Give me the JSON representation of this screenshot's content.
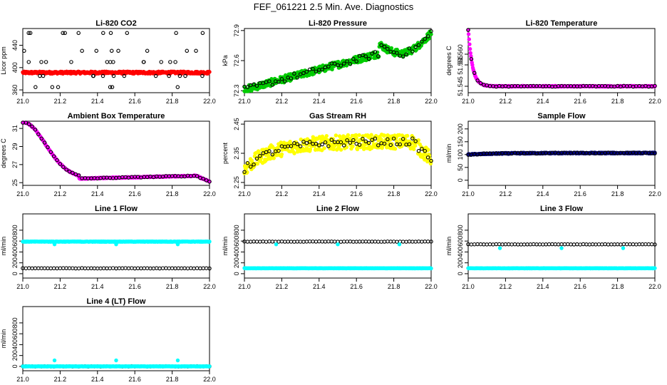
{
  "figure": {
    "title": "FEF_061221  2.5 Min. Ave. Diagnostics"
  },
  "colors": {
    "black": "#000000",
    "red": "#ff0000",
    "green": "#00cc00",
    "magenta": "#ff00ff",
    "yellow": "#ffff00",
    "navy": "#000080",
    "cyan": "#00ffff"
  },
  "chart_data": [
    {
      "type": "scatter",
      "title": "Li-820 CO2",
      "ylabel": "Licor ppm",
      "xlim": [
        21.0,
        22.0
      ],
      "ylim": [
        355,
        470
      ],
      "x_ticks": [
        "21.0",
        "21.2",
        "21.4",
        "21.6",
        "21.8",
        "22.0"
      ],
      "y_ticks": [
        {
          "v": 360,
          "label": "360"
        },
        {
          "v": 400,
          "label": "400"
        },
        {
          "v": 440,
          "label": "440"
        }
      ],
      "series": [
        {
          "color": "#ff0000",
          "filled": true,
          "fn": "const",
          "params": [
            391,
            2
          ]
        },
        {
          "color": "#000000",
          "filled": false,
          "fn": "scatter_levels",
          "params": [
            [
              365,
              385,
              410,
              430,
              462
            ],
            48
          ]
        }
      ]
    },
    {
      "type": "scatter",
      "title": "Li-820 Pressure",
      "ylabel": "kPa",
      "xlim": [
        21.0,
        22.0
      ],
      "ylim": [
        72.28,
        72.92
      ],
      "x_ticks": [
        "21.0",
        "21.2",
        "21.4",
        "21.6",
        "21.8",
        "22.0"
      ],
      "y_ticks": [
        {
          "v": 72.3,
          "label": "72.3"
        },
        {
          "v": 72.6,
          "label": "72.6"
        },
        {
          "v": 72.9,
          "label": "72.9"
        }
      ],
      "series": [
        {
          "color": "#00cc00",
          "filled": true,
          "fn": "pressure",
          "params": [
            0.035
          ]
        },
        {
          "color": "#000000",
          "filled": false,
          "fn": "pressure",
          "params": [
            0.03
          ]
        }
      ]
    },
    {
      "type": "scatter",
      "title": "Li-820 Temperature",
      "ylabel": "degrees C",
      "xlim": [
        21.0,
        22.0
      ],
      "ylim": [
        51.542,
        51.572
      ],
      "x_ticks": [
        "21.0",
        "21.2",
        "21.4",
        "21.6",
        "21.8",
        "22.0"
      ],
      "y_ticks": [
        {
          "v": 51.545,
          "label": "51.545"
        },
        {
          "v": 51.555,
          "label": "51.555"
        },
        {
          "v": 51.56,
          "label": "51.560"
        }
      ],
      "series": [
        {
          "color": "#ff00ff",
          "filled": true,
          "fn": "licor_temp",
          "params": []
        },
        {
          "color": "#000000",
          "filled": false,
          "fn": "licor_temp",
          "params": []
        }
      ]
    },
    {
      "type": "scatter",
      "title": "Ambient Box Temperature",
      "ylabel": "degrees C",
      "xlim": [
        21.0,
        22.0
      ],
      "ylim": [
        24.7,
        31.8
      ],
      "x_ticks": [
        "21.0",
        "21.2",
        "21.4",
        "21.6",
        "21.8",
        "22.0"
      ],
      "y_ticks": [
        {
          "v": 25,
          "label": "25"
        },
        {
          "v": 27,
          "label": "27"
        },
        {
          "v": 29,
          "label": "29"
        },
        {
          "v": 31,
          "label": "31"
        }
      ],
      "series": [
        {
          "color": "#ff00ff",
          "filled": true,
          "fn": "box_temp",
          "params": []
        },
        {
          "color": "#000000",
          "filled": false,
          "fn": "box_temp",
          "params": []
        }
      ]
    },
    {
      "type": "scatter",
      "title": "Gas Stream RH",
      "ylabel": "percent",
      "xlim": [
        21.0,
        22.0
      ],
      "ylim": [
        2.24,
        2.46
      ],
      "x_ticks": [
        "21.0",
        "21.2",
        "21.4",
        "21.6",
        "21.8",
        "22.0"
      ],
      "y_ticks": [
        {
          "v": 2.25,
          "label": "2.25"
        },
        {
          "v": 2.35,
          "label": "2.35"
        },
        {
          "v": 2.45,
          "label": "2.45"
        }
      ],
      "series": [
        {
          "color": "#ffff00",
          "filled": true,
          "fn": "rh",
          "params": [
            0.025
          ]
        },
        {
          "color": "#000000",
          "filled": false,
          "fn": "rh",
          "params": [
            0.012
          ]
        }
      ]
    },
    {
      "type": "scatter",
      "title": "Sample Flow",
      "ylabel": "ml/min",
      "xlim": [
        21.0,
        22.0
      ],
      "ylim": [
        -20,
        230
      ],
      "x_ticks": [
        "21.0",
        "21.2",
        "21.4",
        "21.6",
        "21.8",
        "22.0"
      ],
      "y_ticks": [
        {
          "v": 0,
          "label": "0"
        },
        {
          "v": 50,
          "label": "50"
        },
        {
          "v": 100,
          "label": "100"
        },
        {
          "v": 150,
          "label": "150"
        },
        {
          "v": 200,
          "label": "200"
        }
      ],
      "series": [
        {
          "color": "#000080",
          "filled": true,
          "fn": "sample_flow",
          "params": []
        },
        {
          "color": "#000000",
          "filled": false,
          "fn": "sample_flow",
          "params": []
        }
      ]
    },
    {
      "type": "scatter",
      "title": "Line 1 Flow",
      "ylabel": "ml/min",
      "xlim": [
        21.0,
        22.0
      ],
      "ylim": [
        -80,
        1100
      ],
      "x_ticks": [
        "21.0",
        "21.2",
        "21.4",
        "21.6",
        "21.8",
        "22.0"
      ],
      "y_ticks": [
        {
          "v": 0,
          "label": "0"
        },
        {
          "v": 200,
          "label": "200"
        },
        {
          "v": 400,
          "label": "400"
        },
        {
          "v": 600,
          "label": "600"
        },
        {
          "v": 800,
          "label": "800"
        }
      ],
      "series": [
        {
          "color": "#000000",
          "filled": false,
          "fn": "const",
          "params": [
            100,
            3
          ]
        },
        {
          "color": "#00ffff",
          "filled": true,
          "fn": "const_dips",
          "params": [
            590,
            540
          ]
        }
      ]
    },
    {
      "type": "scatter",
      "title": "Line 2 Flow",
      "ylabel": "ml/min",
      "xlim": [
        21.0,
        22.0
      ],
      "ylim": [
        -80,
        1100
      ],
      "x_ticks": [
        "21.0",
        "21.2",
        "21.4",
        "21.6",
        "21.8",
        "22.0"
      ],
      "y_ticks": [
        {
          "v": 0,
          "label": "0"
        },
        {
          "v": 200,
          "label": "200"
        },
        {
          "v": 400,
          "label": "400"
        },
        {
          "v": 600,
          "label": "600"
        },
        {
          "v": 800,
          "label": "800"
        }
      ],
      "series": [
        {
          "color": "#000000",
          "filled": false,
          "fn": "const",
          "params": [
            590,
            3
          ]
        },
        {
          "color": "#00ffff",
          "filled": true,
          "fn": "const",
          "params": [
            100,
            3
          ]
        },
        {
          "color": "#00ffff",
          "filled": true,
          "fn": "const_dips_only",
          "params": [
            540
          ]
        }
      ]
    },
    {
      "type": "scatter",
      "title": "Line 3 Flow",
      "ylabel": "ml/min",
      "xlim": [
        21.0,
        22.0
      ],
      "ylim": [
        -80,
        1100
      ],
      "x_ticks": [
        "21.0",
        "21.2",
        "21.4",
        "21.6",
        "21.8",
        "22.0"
      ],
      "y_ticks": [
        {
          "v": 0,
          "label": "0"
        },
        {
          "v": 200,
          "label": "200"
        },
        {
          "v": 400,
          "label": "400"
        },
        {
          "v": 600,
          "label": "600"
        },
        {
          "v": 800,
          "label": "800"
        }
      ],
      "series": [
        {
          "color": "#000000",
          "filled": false,
          "fn": "const",
          "params": [
            540,
            3
          ]
        },
        {
          "color": "#00ffff",
          "filled": true,
          "fn": "const",
          "params": [
            100,
            3
          ]
        },
        {
          "color": "#00ffff",
          "filled": true,
          "fn": "const_dips_only",
          "params": [
            470
          ]
        }
      ]
    },
    {
      "type": "scatter",
      "title": "Line 4 (LT) Flow",
      "ylabel": "ml/min",
      "xlim": [
        21.0,
        22.0
      ],
      "ylim": [
        -80,
        1100
      ],
      "x_ticks": [
        "21.0",
        "21.2",
        "21.4",
        "21.6",
        "21.8",
        "22.0"
      ],
      "y_ticks": [
        {
          "v": 0,
          "label": "0"
        },
        {
          "v": 200,
          "label": "200"
        },
        {
          "v": 400,
          "label": "400"
        },
        {
          "v": 600,
          "label": "600"
        },
        {
          "v": 800,
          "label": "800"
        }
      ],
      "series": [
        {
          "color": "#000000",
          "filled": false,
          "fn": "const",
          "params": [
            0,
            3
          ]
        },
        {
          "color": "#00ffff",
          "filled": true,
          "fn": "const",
          "params": [
            0,
            2
          ]
        },
        {
          "color": "#00ffff",
          "filled": true,
          "fn": "const_dips_only",
          "params": [
            110
          ]
        }
      ]
    }
  ]
}
